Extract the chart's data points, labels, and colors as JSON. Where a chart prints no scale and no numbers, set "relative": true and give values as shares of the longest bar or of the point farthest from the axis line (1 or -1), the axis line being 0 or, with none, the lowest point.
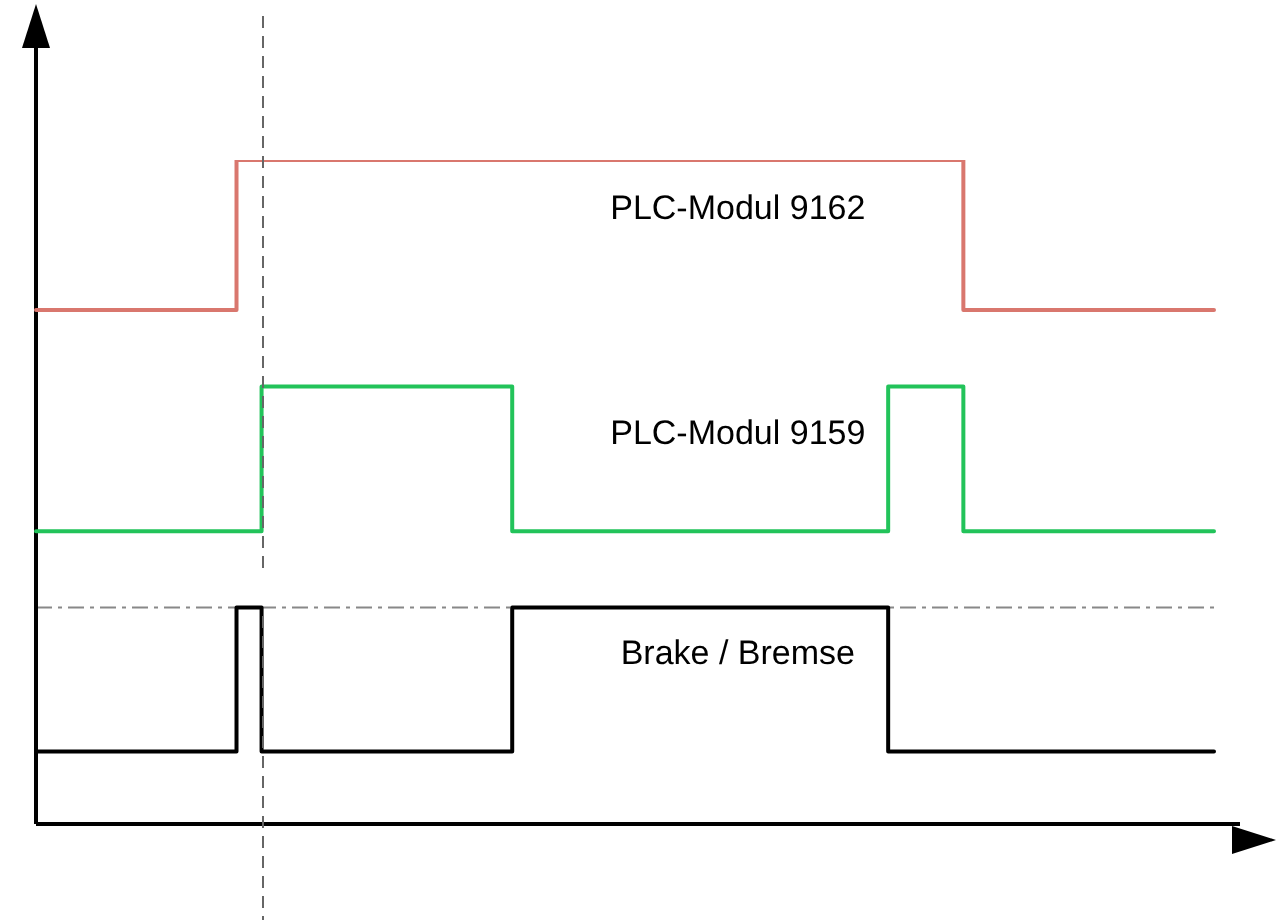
{
  "chart_data": {
    "type": "step",
    "relative": true,
    "grid": false,
    "legend": false,
    "marker": "none",
    "line_style": "solid",
    "categories": [
      null,
      null,
      null,
      null,
      null,
      null,
      null,
      null,
      null,
      null,
      null,
      null,
      null,
      null,
      null,
      null,
      null,
      null,
      null,
      null,
      null,
      null,
      null,
      null,
      null,
      null,
      null,
      null,
      null,
      null,
      null,
      null,
      null,
      null,
      null,
      null,
      null,
      null,
      null,
      null,
      null,
      null,
      null,
      null,
      null,
      null,
      null,
      null
    ],
    "series": [
      {
        "name": "PLC-Modul 9162",
        "color": "#d9776e",
        "values": [
          0.774,
          0.774,
          0.774,
          0.774,
          0.774,
          0.774,
          0.774,
          0.774,
          0.774,
          1,
          1,
          1,
          1,
          1,
          1,
          1,
          1,
          1,
          1,
          1,
          1,
          1,
          1,
          1,
          1,
          1,
          1,
          1,
          1,
          1,
          1,
          1,
          1,
          1,
          1,
          1,
          1,
          1,
          0.774,
          0.774,
          0.774,
          0.774,
          0.774,
          0.774,
          0.774,
          0.774,
          0.774,
          0.774
        ]
      },
      {
        "name": "PLC-Modul 9159",
        "color": "#22c35a",
        "values": [
          0.441,
          0.441,
          0.441,
          0.441,
          0.441,
          0.441,
          0.441,
          0.441,
          0.441,
          0.441,
          0.659,
          0.659,
          0.659,
          0.659,
          0.659,
          0.659,
          0.659,
          0.659,
          0.659,
          0.659,
          0.441,
          0.441,
          0.441,
          0.441,
          0.441,
          0.441,
          0.441,
          0.441,
          0.441,
          0.441,
          0.441,
          0.441,
          0.441,
          0.441,
          0.441,
          0.659,
          0.659,
          0.659,
          0.441,
          0.441,
          0.441,
          0.441,
          0.441,
          0.441,
          0.441,
          0.441,
          0.441,
          0.441
        ]
      },
      {
        "name": "Brake / Bremse",
        "color": "#000000",
        "values": [
          0.109,
          0.109,
          0.109,
          0.109,
          0.109,
          0.109,
          0.109,
          0.109,
          0.109,
          0.326,
          0.109,
          0.109,
          0.109,
          0.109,
          0.109,
          0.109,
          0.109,
          0.109,
          0.109,
          0.109,
          0.326,
          0.326,
          0.326,
          0.326,
          0.326,
          0.326,
          0.326,
          0.326,
          0.326,
          0.326,
          0.326,
          0.326,
          0.326,
          0.326,
          0.326,
          0.109,
          0.109,
          0.109,
          0.109,
          0.109,
          0.109,
          0.109,
          0.109,
          0.109,
          0.109,
          0.109,
          0.109,
          0.109
        ]
      }
    ],
    "ref_lines": [
      {
        "axis": "y",
        "value": 0.326,
        "color": "#888888",
        "line_style": "dashdot"
      }
    ]
  }
}
